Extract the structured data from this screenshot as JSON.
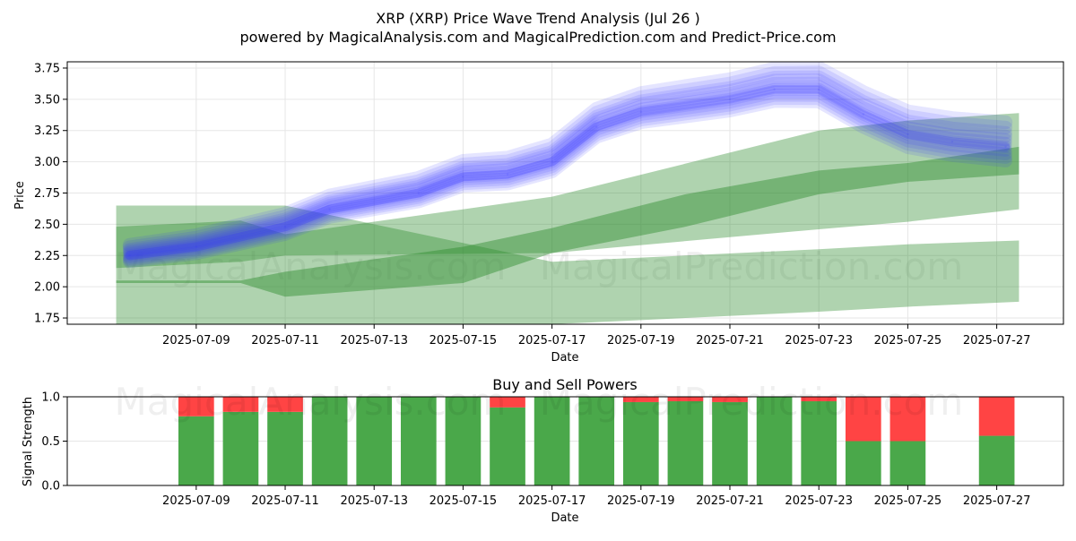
{
  "chart_data": [
    {
      "type": "line",
      "title": "XRP (XRP) Price Wave Trend Analysis (Jul 26 )",
      "subtitle": "powered by MagicalAnalysis.com and MagicalPrediction.com and Predict-Price.com",
      "xlabel": "Date",
      "ylabel": "Price",
      "ylim": [
        1.7,
        3.8
      ],
      "xlim_days": [
        6.1,
        28.5
      ],
      "x_ticks": [
        "2025-07-09",
        "2025-07-11",
        "2025-07-13",
        "2025-07-15",
        "2025-07-17",
        "2025-07-19",
        "2025-07-21",
        "2025-07-23",
        "2025-07-25",
        "2025-07-27"
      ],
      "x_tick_days": [
        9,
        11,
        13,
        15,
        17,
        19,
        21,
        23,
        25,
        27
      ],
      "y_ticks": [
        "1.75",
        "2.00",
        "2.25",
        "2.50",
        "2.75",
        "3.00",
        "3.25",
        "3.50",
        "3.75"
      ],
      "y_tick_values": [
        1.75,
        2.0,
        2.25,
        2.5,
        2.75,
        3.0,
        3.25,
        3.5,
        3.75
      ],
      "grid": true,
      "price_series": {
        "name": "Price wave (ensemble)",
        "days": [
          7.5,
          9,
          11,
          12,
          14,
          15,
          16,
          17,
          18,
          19,
          21,
          22,
          23,
          24,
          25,
          26,
          27.2
        ],
        "values": [
          2.25,
          2.32,
          2.48,
          2.62,
          2.75,
          2.88,
          2.9,
          3.0,
          3.28,
          3.4,
          3.5,
          3.58,
          3.58,
          3.38,
          3.22,
          3.16,
          3.12
        ]
      },
      "trend_bands": [
        {
          "name": "Upper trend channel",
          "days": [
            7.2,
            10,
            11,
            17,
            23,
            25,
            27.5
          ],
          "lower": [
            2.15,
            2.2,
            2.25,
            2.27,
            2.46,
            2.52,
            2.62
          ],
          "upper": [
            2.48,
            2.53,
            2.42,
            2.72,
            3.25,
            3.33,
            3.39
          ]
        },
        {
          "name": "Middle trend channel",
          "days": [
            7.2,
            10,
            11,
            15,
            17,
            20,
            23,
            25,
            27.5
          ],
          "lower": [
            2.03,
            2.03,
            1.92,
            2.03,
            2.27,
            2.48,
            2.74,
            2.84,
            2.9
          ],
          "upper": [
            2.05,
            2.05,
            2.12,
            2.32,
            2.47,
            2.74,
            2.93,
            2.99,
            3.12
          ]
        },
        {
          "name": "Lower trend channel",
          "days": [
            7.2,
            11,
            17,
            23,
            25,
            27.5
          ],
          "lower": [
            1.7,
            1.7,
            1.7,
            1.8,
            1.84,
            1.88
          ],
          "upper": [
            2.65,
            2.65,
            2.2,
            2.3,
            2.34,
            2.37
          ]
        }
      ],
      "watermarks": [
        "MagicalAnalysis.com",
        "MagicalPrediction.com"
      ],
      "colors": {
        "price": "#3333ff",
        "band": "#2e8b2e",
        "grid": "#e6e6e6"
      }
    },
    {
      "type": "bar",
      "title": "Buy and Sell Powers",
      "xlabel": "Date",
      "ylabel": "Signal Strength",
      "ylim": [
        0,
        1.0
      ],
      "y_ticks": [
        "0.0",
        "0.5",
        "1.0"
      ],
      "y_tick_values": [
        0,
        0.5,
        1.0
      ],
      "x_ticks": [
        "2025-07-09",
        "2025-07-11",
        "2025-07-13",
        "2025-07-15",
        "2025-07-17",
        "2025-07-19",
        "2025-07-21",
        "2025-07-23",
        "2025-07-25",
        "2025-07-27"
      ],
      "x_tick_days": [
        9,
        11,
        13,
        15,
        17,
        19,
        21,
        23,
        25,
        27
      ],
      "days": [
        9,
        10,
        11,
        12,
        13,
        14,
        15,
        16,
        17,
        18,
        19,
        20,
        21,
        22,
        23,
        24,
        25,
        27
      ],
      "series": [
        {
          "name": "Buy",
          "color": "#4aa84a",
          "values": [
            0.78,
            0.83,
            0.83,
            1.0,
            1.0,
            1.0,
            1.0,
            0.88,
            1.0,
            1.0,
            0.94,
            0.95,
            0.94,
            1.0,
            0.95,
            0.5,
            0.5,
            0.56
          ]
        },
        {
          "name": "Sell",
          "color": "#ff4444",
          "values": [
            0.22,
            0.17,
            0.17,
            0.0,
            0.0,
            0.0,
            0.0,
            0.12,
            0.0,
            0.0,
            0.06,
            0.05,
            0.06,
            0.0,
            0.05,
            0.5,
            0.5,
            0.44
          ]
        }
      ],
      "watermarks": [
        "MagicalAnalysis.com",
        "MagicalPrediction.com"
      ]
    }
  ]
}
